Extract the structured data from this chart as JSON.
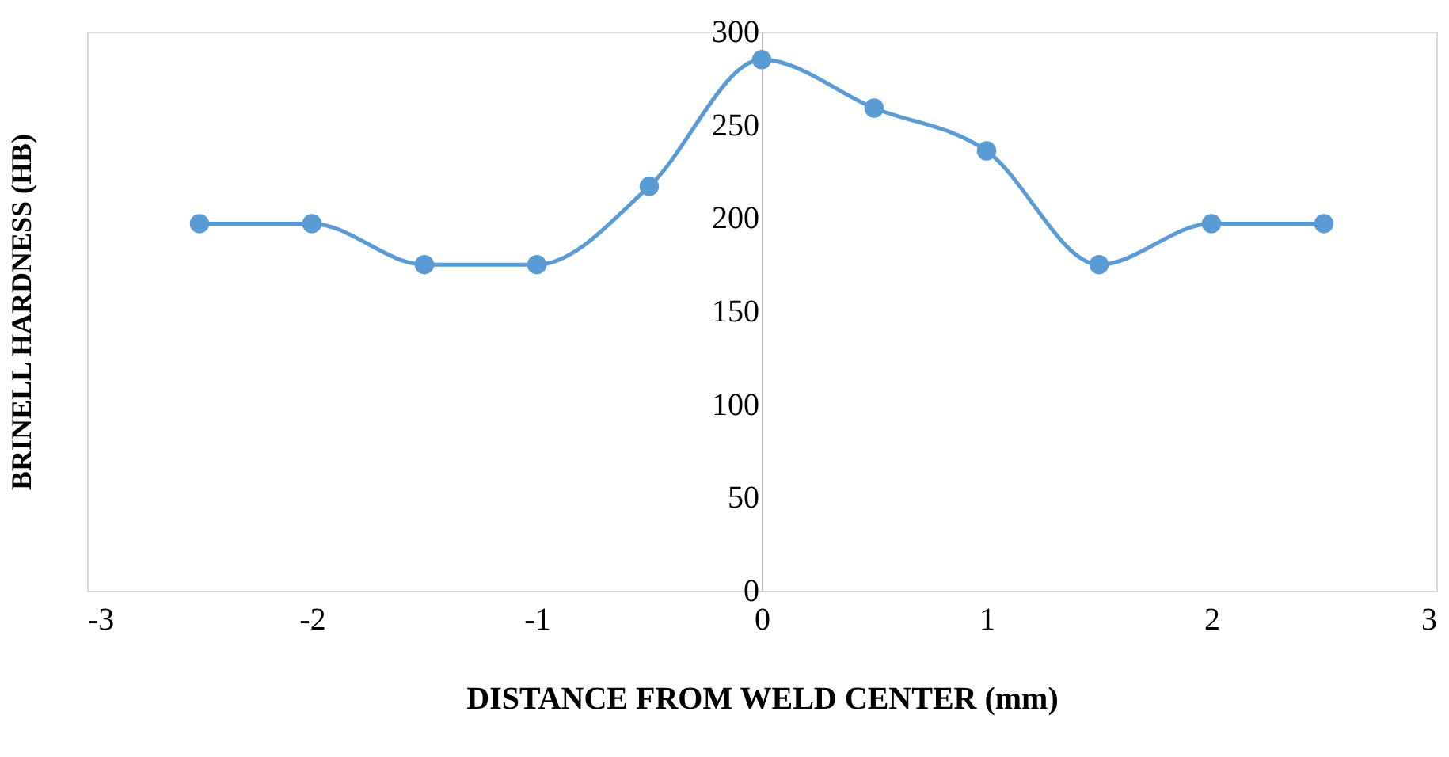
{
  "chart_data": {
    "type": "line",
    "xlabel": "DISTANCE FROM WELD CENTER (mm)",
    "ylabel": "BRINELL HARDNESS (HB)",
    "x": [
      -2.5,
      -2,
      -1.5,
      -1,
      -0.5,
      0,
      0.5,
      1,
      1.5,
      2,
      2.5
    ],
    "series": [
      {
        "color": "#5b9bd5",
        "values": [
          197,
          197,
          175,
          175,
          217,
          285,
          259,
          236,
          175,
          197,
          197
        ]
      }
    ],
    "xlim": [
      -3,
      3
    ],
    "xticks": [
      -3,
      -2,
      -1,
      0,
      1,
      2,
      3
    ],
    "ylim": [
      0,
      300
    ],
    "yticks": [
      0,
      50,
      100,
      150,
      200,
      250,
      300
    ],
    "grid": false,
    "marker": "circle",
    "line_style": "solid"
  }
}
